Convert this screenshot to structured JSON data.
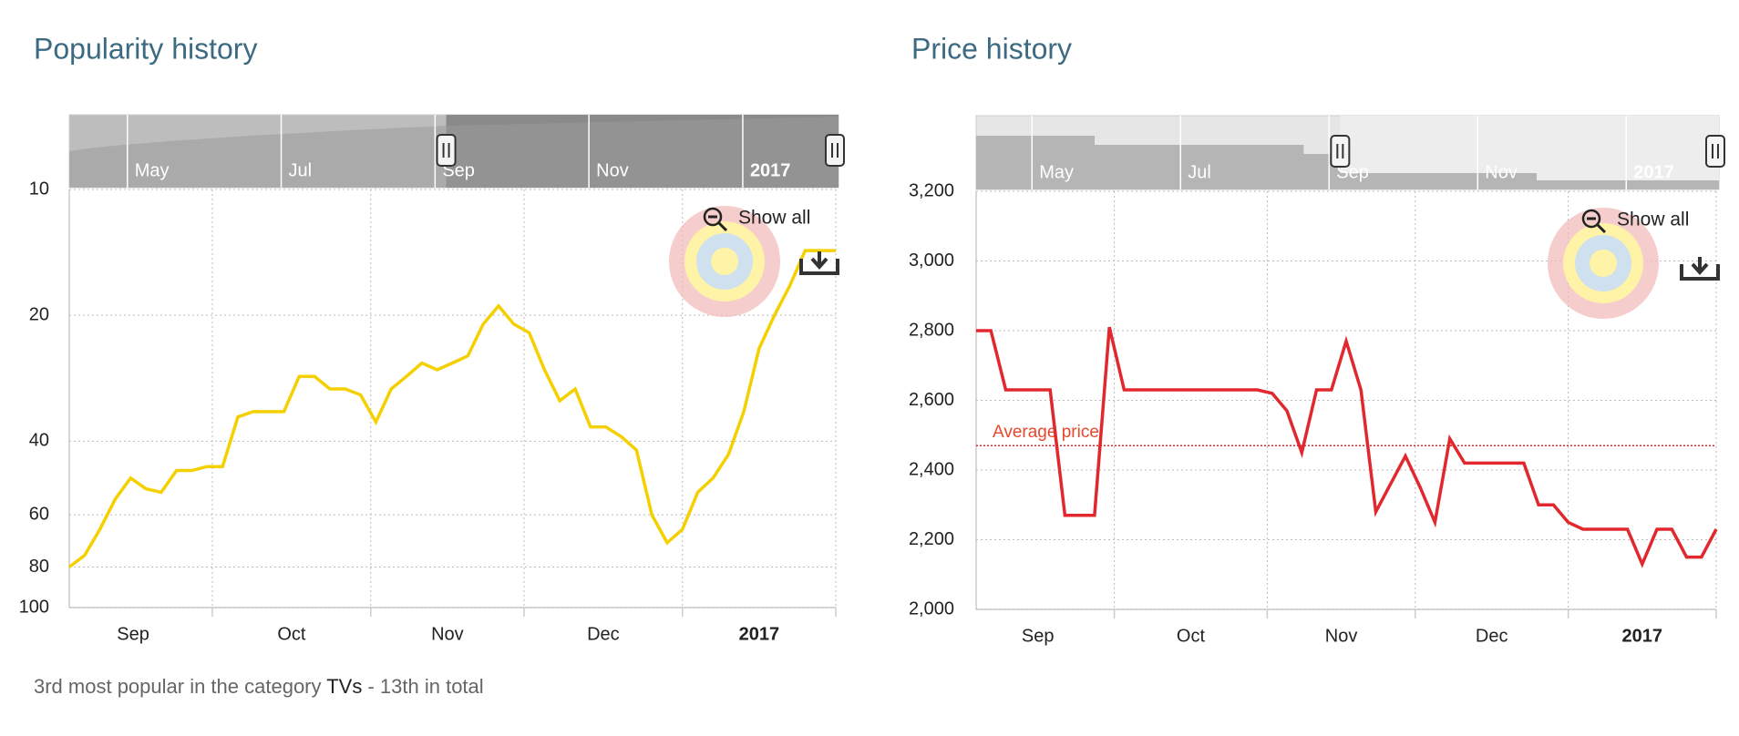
{
  "chart_data": [
    {
      "type": "line",
      "title": "Popularity history",
      "reset_button": "Show all",
      "y_scale": "log",
      "y_reversed": true,
      "grid": true,
      "color": "#f5d000",
      "navigator_labels": [
        "May",
        "Jul",
        "Sep",
        "Nov",
        "2017"
      ],
      "xlim": [
        0,
        150
      ],
      "xticks": [
        {
          "value": 28,
          "label": "Sep"
        },
        {
          "value": 59,
          "label": "Oct"
        },
        {
          "value": 89,
          "label": "Nov"
        },
        {
          "value": 120,
          "label": "Dec"
        },
        {
          "value": 150,
          "label": "2017"
        }
      ],
      "ylim": [
        10,
        100
      ],
      "yticks": [
        10,
        20,
        40,
        60,
        80,
        100
      ],
      "x": [
        0,
        3,
        6,
        9,
        12,
        15,
        18,
        21,
        24,
        27,
        30,
        33,
        36,
        39,
        42,
        45,
        48,
        51,
        54,
        57,
        60,
        63,
        66,
        69,
        72,
        75,
        78,
        81,
        84,
        87,
        90,
        93,
        96,
        99,
        102,
        105,
        108,
        111,
        114,
        117,
        120,
        123,
        126,
        129,
        132,
        135,
        138,
        141,
        144,
        147,
        150
      ],
      "values": [
        80,
        75,
        65,
        55,
        49,
        52,
        53,
        47,
        47,
        46,
        46,
        35,
        34,
        34,
        34,
        28,
        28,
        30,
        30,
        31,
        36,
        30,
        28,
        26,
        27,
        26,
        25,
        21,
        19,
        21,
        22,
        27,
        32,
        30,
        37,
        37,
        39,
        42,
        60,
        70,
        65,
        53,
        49,
        43,
        34,
        24,
        20,
        17,
        14,
        14,
        14
      ]
    },
    {
      "type": "line",
      "title": "Price history",
      "reset_button": "Show all",
      "y_scale": "linear",
      "y_reversed": false,
      "grid": true,
      "color": "#e0282e",
      "navigator_labels": [
        "May",
        "Jul",
        "Sep",
        "Nov",
        "2017"
      ],
      "average_line": {
        "value": 2470,
        "label": "Average price"
      },
      "xlim": [
        0,
        150
      ],
      "xticks": [
        {
          "value": 28,
          "label": "Sep"
        },
        {
          "value": 59,
          "label": "Oct"
        },
        {
          "value": 89,
          "label": "Nov"
        },
        {
          "value": 120,
          "label": "Dec"
        },
        {
          "value": 150,
          "label": "2017"
        }
      ],
      "ylim": [
        2000,
        3200
      ],
      "yticks": [
        {
          "value": 2000,
          "label": "2,000"
        },
        {
          "value": 2200,
          "label": "2,200"
        },
        {
          "value": 2400,
          "label": "2,400"
        },
        {
          "value": 2600,
          "label": "2,600"
        },
        {
          "value": 2800,
          "label": "2,800"
        },
        {
          "value": 3000,
          "label": "3,000"
        },
        {
          "value": 3200,
          "label": "3,200"
        }
      ],
      "x": [
        0,
        3,
        6,
        9,
        12,
        15,
        18,
        21,
        24,
        27,
        30,
        33,
        36,
        39,
        42,
        45,
        48,
        51,
        54,
        57,
        60,
        63,
        66,
        69,
        72,
        75,
        78,
        81,
        84,
        87,
        90,
        93,
        96,
        99,
        102,
        105,
        108,
        111,
        114,
        117,
        120,
        123,
        126,
        129,
        132,
        135,
        138,
        141,
        144,
        147,
        150
      ],
      "values": [
        2800,
        2800,
        2630,
        2630,
        2630,
        2630,
        2270,
        2270,
        2270,
        2810,
        2630,
        2630,
        2630,
        2630,
        2630,
        2630,
        2630,
        2630,
        2630,
        2630,
        2620,
        2570,
        2450,
        2630,
        2630,
        2770,
        2630,
        2280,
        2360,
        2440,
        2350,
        2250,
        2490,
        2420,
        2420,
        2420,
        2420,
        2420,
        2300,
        2300,
        2250,
        2230,
        2230,
        2230,
        2230,
        2130,
        2230,
        2230,
        2150,
        2150,
        2230
      ]
    }
  ],
  "footer": {
    "prefix": "3rd most popular in the category ",
    "link": "TVs",
    "suffix": " - 13th in total"
  }
}
